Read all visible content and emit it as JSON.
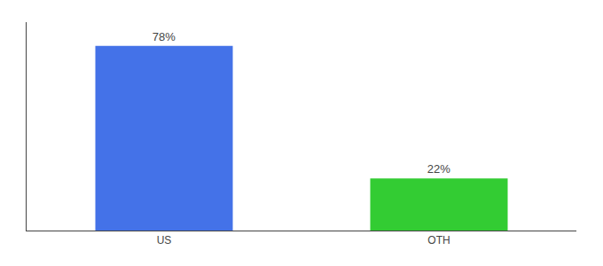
{
  "chart_data": {
    "type": "bar",
    "categories": [
      "US",
      "OTH"
    ],
    "values": [
      78,
      22
    ],
    "value_labels": [
      "78%",
      "22%"
    ],
    "colors": [
      "#4472e8",
      "#33cc33"
    ],
    "ylim": [
      0,
      88
    ],
    "data_labels": true,
    "tick_labels": "x",
    "grid": false
  }
}
